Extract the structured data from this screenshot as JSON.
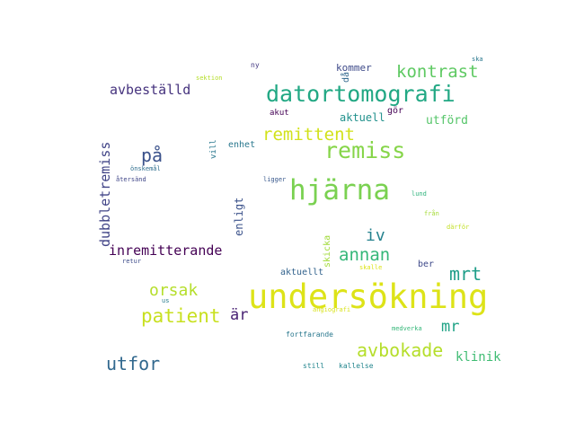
{
  "words": [
    {
      "text": "undersökning",
      "color": "#dde318"
    },
    {
      "text": "hjärna",
      "color": "#7ad151"
    },
    {
      "text": "datortomografi",
      "color": "#22a884"
    },
    {
      "text": "remiss",
      "color": "#86d549"
    },
    {
      "text": "kontrast",
      "color": "#5ec962"
    },
    {
      "text": "remittent",
      "color": "#d2e21b"
    },
    {
      "text": "patient",
      "color": "#c8e020"
    },
    {
      "text": "avbokade",
      "color": "#b5de2b"
    },
    {
      "text": "utfor",
      "color": "#31688e"
    },
    {
      "text": "mrt",
      "color": "#1f9e89"
    },
    {
      "text": "annan",
      "color": "#35b779"
    },
    {
      "text": "iv",
      "color": "#26828e"
    },
    {
      "text": "orsak",
      "color": "#b5de2b"
    },
    {
      "text": "på",
      "color": "#3b528b"
    },
    {
      "text": "avbeställd",
      "color": "#46337e"
    },
    {
      "text": "inremitterande",
      "color": "#440154"
    },
    {
      "text": "dubbletremiss",
      "color": "#414487"
    },
    {
      "text": "mr",
      "color": "#20a386"
    },
    {
      "text": "är",
      "color": "#482173"
    },
    {
      "text": "klinik",
      "color": "#3fbc73"
    },
    {
      "text": "utförd",
      "color": "#54c568"
    },
    {
      "text": "aktuell",
      "color": "#21918c"
    },
    {
      "text": "kommer",
      "color": "#3e4a89"
    },
    {
      "text": "enligt",
      "color": "#3b528b"
    },
    {
      "text": "skicka",
      "color": "#a0da39"
    },
    {
      "text": "aktuellt",
      "color": "#33638d"
    },
    {
      "text": "enhet",
      "color": "#2a788e"
    },
    {
      "text": "ber",
      "color": "#3e4989"
    },
    {
      "text": "gör",
      "color": "#440154"
    },
    {
      "text": "då",
      "color": "#31688e"
    },
    {
      "text": "akut",
      "color": "#440154"
    },
    {
      "text": "vill",
      "color": "#2a788e"
    },
    {
      "text": "ny",
      "color": "#443983"
    },
    {
      "text": "sektion",
      "color": "#b5de2b"
    },
    {
      "text": "ska",
      "color": "#2a788e"
    },
    {
      "text": "önskemål",
      "color": "#2e6e8e"
    },
    {
      "text": "återsänd",
      "color": "#404688"
    },
    {
      "text": "ligger",
      "color": "#38588c"
    },
    {
      "text": "lund",
      "color": "#2eb37c"
    },
    {
      "text": "från",
      "color": "#a5db36"
    },
    {
      "text": "därför",
      "color": "#c2df23"
    },
    {
      "text": "retur",
      "color": "#3e4c8a"
    },
    {
      "text": "skalle",
      "color": "#dde318"
    },
    {
      "text": "us",
      "color": "#287c8e"
    },
    {
      "text": "angiografi",
      "color": "#d8e219"
    },
    {
      "text": "fortfarande",
      "color": "#2a788e"
    },
    {
      "text": "medverka",
      "color": "#35b779"
    },
    {
      "text": "still",
      "color": "#24868e"
    },
    {
      "text": "kallelse",
      "color": "#24868e"
    }
  ]
}
